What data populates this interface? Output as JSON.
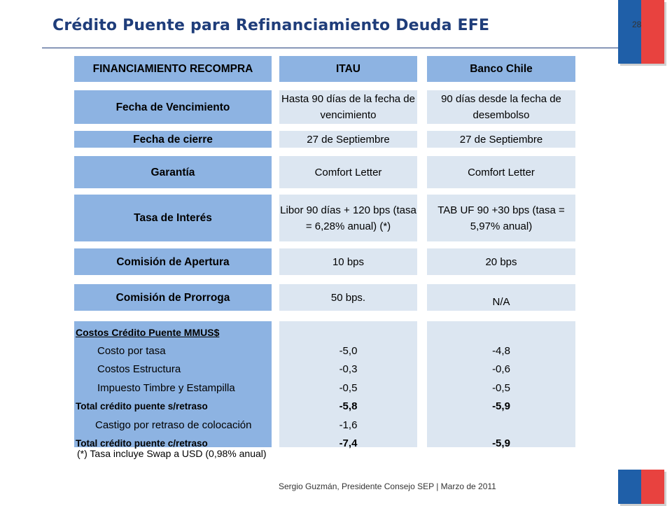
{
  "header": {
    "title": "Crédito Puente para Refinanciamiento Deuda EFE",
    "page_number": "28"
  },
  "table": {
    "columns": [
      "FINANCIAMIENTO RECOMPRA",
      "ITAU",
      "Banco Chile"
    ],
    "rows": [
      {
        "label": "Fecha de Vencimiento",
        "itau": "Hasta 90 días de la fecha de vencimiento",
        "bchile": "90 días desde la fecha de desembolso"
      },
      {
        "label": "Fecha de cierre",
        "itau": "27 de Septiembre",
        "bchile": "27 de Septiembre"
      },
      {
        "label": "Garantía",
        "itau": "Comfort Letter",
        "bchile": "Comfort Letter"
      },
      {
        "label": "Tasa de Interés",
        "itau": "Libor 90 días + 120 bps (tasa = 6,28% anual) (*)",
        "bchile": "TAB UF 90 +30 bps (tasa = 5,97% anual)"
      },
      {
        "label": "Comisión de Apertura",
        "itau": "10 bps",
        "bchile": "20 bps"
      },
      {
        "label": "Comisión de Prorroga",
        "itau": "50 bps.",
        "bchile": "N/A"
      }
    ],
    "costs": {
      "heading": "Costos Crédito Puente MMUS$",
      "items": [
        {
          "label": "Costo por tasa",
          "itau": "-5,0",
          "bchile": "-4,8"
        },
        {
          "label": "Costos Estructura",
          "itau": "-0,3",
          "bchile": "-0,6"
        },
        {
          "label": "Impuesto Timbre y Estampilla",
          "itau": "-0,5",
          "bchile": "-0,5"
        },
        {
          "label": "Total crédito puente s/retraso",
          "itau": "-5,8",
          "bchile": "-5,9"
        },
        {
          "label": "Castigo por retraso de colocación",
          "itau": "-1,6",
          "bchile": ""
        },
        {
          "label": "Total crédito puente c/retraso",
          "itau": "-7,4",
          "bchile": "-5,9"
        }
      ]
    }
  },
  "footnote": "(*) Tasa incluye Swap a USD (0,98% anual)",
  "footer": "Sergio Guzmán, Presidente Consejo SEP | Marzo de 2011",
  "colors": {
    "title": "#1f3d7a",
    "label_fill": "#8db3e2",
    "value_fill": "#dce6f1",
    "flag_blue": "#1f5fa8",
    "flag_red": "#e8423f"
  },
  "icons": [
    "chile-flag-icon"
  ]
}
